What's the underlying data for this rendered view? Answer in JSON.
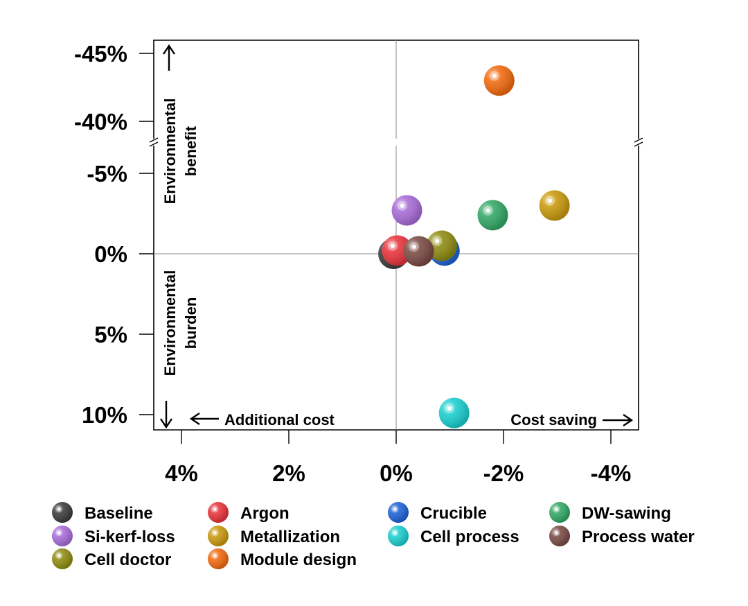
{
  "chart_data": {
    "type": "scatter",
    "title": "",
    "xlabel": "",
    "ylabel": "",
    "x_direction": "reversed",
    "y_direction": "reversed",
    "y_axis_break": [
      -5.5,
      -39.5
    ],
    "xlim": [
      4.5,
      -4.5
    ],
    "ylim_lower": [
      11,
      -6.5
    ],
    "ylim_upper": [
      -39.5,
      -46
    ],
    "x_ticks": [
      {
        "v": 4,
        "label": "4%"
      },
      {
        "v": 2,
        "label": "2%"
      },
      {
        "v": 0,
        "label": "0%"
      },
      {
        "v": -2,
        "label": "-2%"
      },
      {
        "v": -4,
        "label": "-4%"
      }
    ],
    "y_ticks": [
      {
        "v": -45,
        "label": "-45%"
      },
      {
        "v": -40,
        "label": "-40%"
      },
      {
        "v": -5,
        "label": "-5%"
      },
      {
        "v": 0,
        "label": "0%"
      },
      {
        "v": 5,
        "label": "5%"
      },
      {
        "v": 10,
        "label": "10%"
      }
    ],
    "series": [
      {
        "name": "Baseline",
        "color": "#3d3d3d",
        "x": 0.05,
        "y": 0.0
      },
      {
        "name": "Si-kerf-loss",
        "color": "#a86cd8",
        "x": -0.2,
        "y": -2.7
      },
      {
        "name": "Cell doctor",
        "color": "#8e8c11",
        "x": -0.85,
        "y": -0.5
      },
      {
        "name": "Argon",
        "color": "#e8343c",
        "x": -0.02,
        "y": -0.2
      },
      {
        "name": "Metallization",
        "color": "#c99a0e",
        "x": -2.95,
        "y": -3.0
      },
      {
        "name": "Module design",
        "color": "#f26a10",
        "x": -1.92,
        "y": -43.0
      },
      {
        "name": "Crucible",
        "color": "#1f63d6",
        "x": -0.9,
        "y": -0.2
      },
      {
        "name": "Cell process",
        "color": "#1ccfcf",
        "x": -1.08,
        "y": 9.9
      },
      {
        "name": "DW-sawing",
        "color": "#33a866",
        "x": -1.8,
        "y": -2.4
      },
      {
        "name": "Process water",
        "color": "#7a4a44",
        "x": -0.42,
        "y": -0.15
      }
    ],
    "annotations": {
      "benefit": "Environmental benefit",
      "burden": "Environmental burden",
      "additional_cost": "Additional cost",
      "cost_saving": "Cost saving"
    },
    "legend": {
      "placement": "bottom",
      "order": [
        "Baseline",
        "Argon",
        "Crucible",
        "DW-sawing",
        "Si-kerf-loss",
        "Metallization",
        "Cell process",
        "Process water",
        "Cell doctor",
        "Module design"
      ]
    },
    "grid": false
  }
}
